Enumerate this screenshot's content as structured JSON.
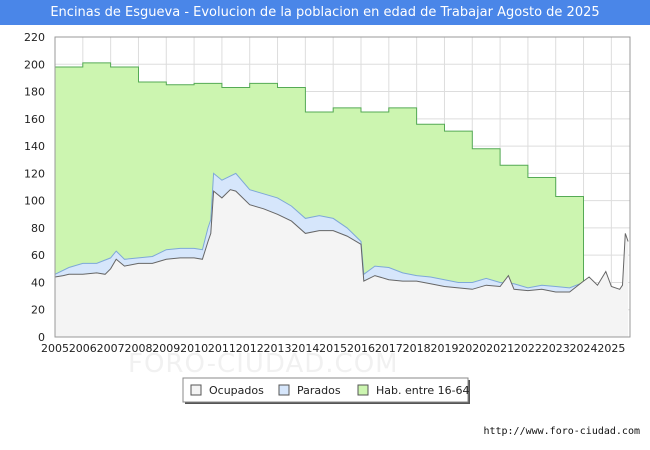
{
  "title": "Encinas de Esgueva - Evolucion de la poblacion en edad de Trabajar Agosto de 2025",
  "footer_url": "http://www.foro-ciudad.com",
  "watermark": "FORO-CIUDAD.COM",
  "chart_data": {
    "type": "area",
    "title": "Encinas de Esgueva - Evolucion de la poblacion en edad de Trabajar Agosto de 2025",
    "xlabel": "",
    "ylabel": "",
    "ylim": [
      0,
      220
    ],
    "yticks": [
      0,
      20,
      40,
      60,
      80,
      100,
      120,
      140,
      160,
      180,
      200,
      220
    ],
    "xlim": [
      2005,
      2025.67
    ],
    "xticks": [
      "2005",
      "2006",
      "2007",
      "2008",
      "2009",
      "2010",
      "2011",
      "2012",
      "2013",
      "2014",
      "2015",
      "2016",
      "2017",
      "2018",
      "2019",
      "2020",
      "2021",
      "2022",
      "2023",
      "2024",
      "2025"
    ],
    "grid": true,
    "legend_position": "bottom",
    "colors": {
      "ocupados_fill": "#f4f4f4",
      "ocupados_line": "#666666",
      "parados_fill": "#d6e6fb",
      "parados_line": "#7ea8d8",
      "hab_fill": "#ccf5b0",
      "hab_line": "#55aa55"
    },
    "series": [
      {
        "name": "Hab. entre 16-64",
        "x": [
          2005,
          2006,
          2007,
          2008,
          2009,
          2010,
          2011,
          2012,
          2013,
          2014,
          2015,
          2016,
          2017,
          2018,
          2019,
          2020,
          2021,
          2022,
          2023,
          2024
        ],
        "values": [
          198,
          201,
          198,
          187,
          185,
          186,
          183,
          186,
          183,
          165,
          168,
          165,
          168,
          156,
          151,
          138,
          126,
          117,
          103,
          40
        ]
      },
      {
        "name": "Parados",
        "x": [
          2005,
          2005.5,
          2006,
          2006.5,
          2007,
          2007.2,
          2007.5,
          2008,
          2008.5,
          2009,
          2009.5,
          2010,
          2010.3,
          2010.5,
          2010.6,
          2010.7,
          2011,
          2011.5,
          2012,
          2012.5,
          2013,
          2013.5,
          2014,
          2014.5,
          2015,
          2015.5,
          2016,
          2016.1,
          2016.5,
          2017,
          2017.5,
          2018,
          2018.5,
          2019,
          2019.5,
          2020,
          2020.5,
          2021,
          2021.5,
          2022,
          2022.5,
          2023,
          2023.5,
          2024
        ],
        "values": [
          46,
          51,
          54,
          54,
          58,
          63,
          57,
          58,
          59,
          64,
          65,
          65,
          64,
          80,
          86,
          120,
          115,
          120,
          108,
          105,
          102,
          96,
          87,
          89,
          87,
          80,
          70,
          46,
          52,
          51,
          47,
          45,
          44,
          42,
          40,
          40,
          43,
          40,
          39,
          36,
          38,
          37,
          36,
          40
        ]
      },
      {
        "name": "Ocupados",
        "x": [
          2005,
          2005.3,
          2005.5,
          2006,
          2006.5,
          2006.8,
          2007,
          2007.2,
          2007.5,
          2008,
          2008.5,
          2009,
          2009.5,
          2010,
          2010.3,
          2010.5,
          2010.6,
          2010.7,
          2011,
          2011.3,
          2011.5,
          2012,
          2012.5,
          2013,
          2013.5,
          2014,
          2014.5,
          2015,
          2015.5,
          2016,
          2016.1,
          2016.5,
          2017,
          2017.5,
          2018,
          2018.5,
          2019,
          2019.5,
          2020,
          2020.5,
          2021,
          2021.3,
          2021.5,
          2022,
          2022.5,
          2023,
          2023.5,
          2024,
          2024.2,
          2024.5,
          2024.8,
          2025,
          2025.3,
          2025.4,
          2025.5,
          2025.6
        ],
        "values": [
          44,
          45,
          46,
          46,
          47,
          46,
          50,
          57,
          52,
          54,
          54,
          57,
          58,
          58,
          57,
          70,
          76,
          107,
          102,
          108,
          107,
          97,
          94,
          90,
          85,
          76,
          78,
          78,
          74,
          68,
          41,
          45,
          42,
          41,
          41,
          39,
          37,
          36,
          35,
          38,
          37,
          45,
          35,
          34,
          35,
          33,
          33,
          41,
          44,
          38,
          48,
          37,
          35,
          38,
          76,
          70
        ]
      }
    ]
  },
  "legend": {
    "items": [
      {
        "label": "Ocupados",
        "swatch": "#f4f4f4"
      },
      {
        "label": "Parados",
        "swatch": "#d6e6fb"
      },
      {
        "label": "Hab. entre 16-64",
        "swatch": "#ccf5b0"
      }
    ]
  }
}
